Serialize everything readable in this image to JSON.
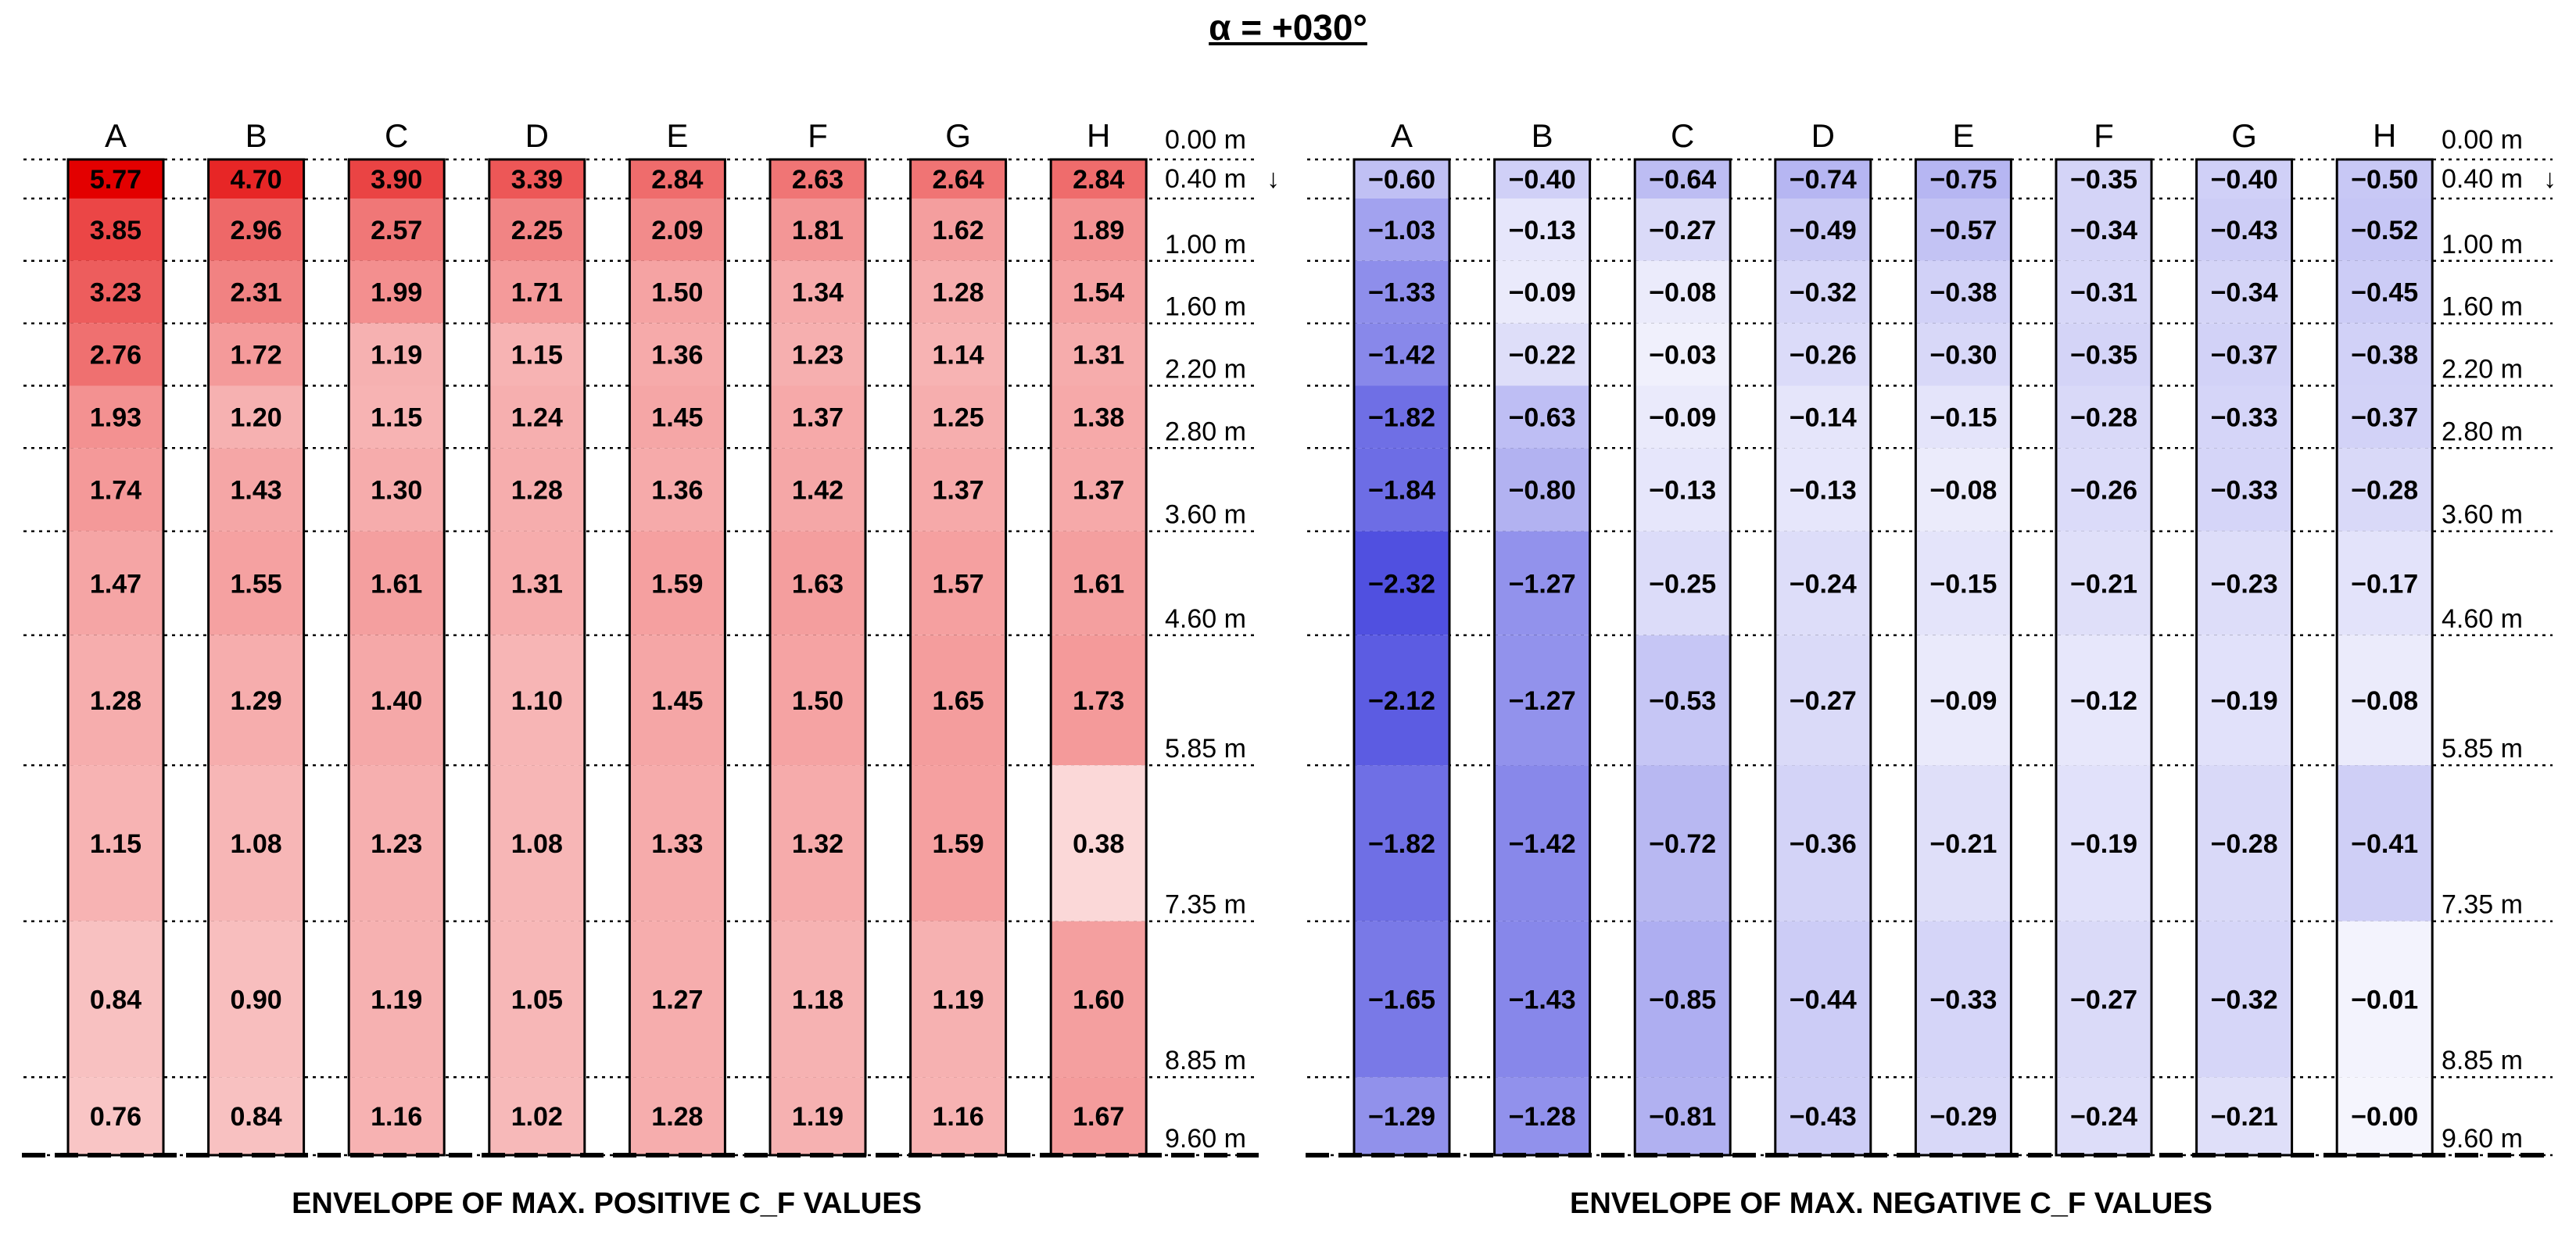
{
  "title": "α = +030°",
  "chart_data": {
    "type": "heatmap",
    "title": "α = +030°",
    "columns": [
      "A",
      "B",
      "C",
      "D",
      "E",
      "F",
      "G",
      "H"
    ],
    "height_labels": [
      "0.00 m",
      "0.40 m",
      "1.00 m",
      "1.60 m",
      "2.20 m",
      "2.80 m",
      "3.60 m",
      "4.60 m",
      "5.85 m",
      "7.35 m",
      "8.85 m",
      "9.60 m"
    ],
    "height_values": [
      0.0,
      0.4,
      1.0,
      1.6,
      2.2,
      2.8,
      3.6,
      4.6,
      5.85,
      7.35,
      8.85,
      9.6
    ],
    "top_marker": "↓",
    "panels": [
      {
        "name": "positive",
        "caption": "ENVELOPE OF MAX. POSITIVE C_F VALUES",
        "color": "#e30000",
        "values": [
          [
            "5.77",
            "4.70",
            "3.90",
            "3.39",
            "2.84",
            "2.63",
            "2.64",
            "2.84"
          ],
          [
            "3.85",
            "2.96",
            "2.57",
            "2.25",
            "2.09",
            "1.81",
            "1.62",
            "1.89"
          ],
          [
            "3.23",
            "2.31",
            "1.99",
            "1.71",
            "1.50",
            "1.34",
            "1.28",
            "1.54"
          ],
          [
            "2.76",
            "1.72",
            "1.19",
            "1.15",
            "1.36",
            "1.23",
            "1.14",
            "1.31"
          ],
          [
            "1.93",
            "1.20",
            "1.15",
            "1.24",
            "1.45",
            "1.37",
            "1.25",
            "1.38"
          ],
          [
            "1.74",
            "1.43",
            "1.30",
            "1.28",
            "1.36",
            "1.42",
            "1.37",
            "1.37"
          ],
          [
            "1.47",
            "1.55",
            "1.61",
            "1.31",
            "1.59",
            "1.63",
            "1.57",
            "1.61"
          ],
          [
            "1.28",
            "1.29",
            "1.40",
            "1.10",
            "1.45",
            "1.50",
            "1.65",
            "1.73"
          ],
          [
            "1.15",
            "1.08",
            "1.23",
            "1.08",
            "1.33",
            "1.32",
            "1.59",
            "0.38"
          ],
          [
            "0.84",
            "0.90",
            "1.19",
            "1.05",
            "1.27",
            "1.18",
            "1.19",
            "1.60"
          ],
          [
            "0.76",
            "0.84",
            "1.16",
            "1.02",
            "1.28",
            "1.19",
            "1.16",
            "1.67"
          ]
        ]
      },
      {
        "name": "negative",
        "caption": "ENVELOPE OF MAX. NEGATIVE C_F VALUES",
        "color": "#5050e0",
        "values": [
          [
            "-0.60",
            "-0.40",
            "-0.64",
            "-0.74",
            "-0.75",
            "-0.35",
            "-0.40",
            "-0.50"
          ],
          [
            "-1.03",
            "-0.13",
            "-0.27",
            "-0.49",
            "-0.57",
            "-0.34",
            "-0.43",
            "-0.52"
          ],
          [
            "-1.33",
            "-0.09",
            "-0.08",
            "-0.32",
            "-0.38",
            "-0.31",
            "-0.34",
            "-0.45"
          ],
          [
            "-1.42",
            "-0.22",
            "-0.03",
            "-0.26",
            "-0.30",
            "-0.35",
            "-0.37",
            "-0.38"
          ],
          [
            "-1.82",
            "-0.63",
            "-0.09",
            "-0.14",
            "-0.15",
            "-0.28",
            "-0.33",
            "-0.37"
          ],
          [
            "-1.84",
            "-0.80",
            "-0.13",
            "-0.13",
            "-0.08",
            "-0.26",
            "-0.33",
            "-0.28"
          ],
          [
            "-2.32",
            "-1.27",
            "-0.25",
            "-0.24",
            "-0.15",
            "-0.21",
            "-0.23",
            "-0.17"
          ],
          [
            "-2.12",
            "-1.27",
            "-0.53",
            "-0.27",
            "-0.09",
            "-0.12",
            "-0.19",
            "-0.08"
          ],
          [
            "-1.82",
            "-1.42",
            "-0.72",
            "-0.36",
            "-0.21",
            "-0.19",
            "-0.28",
            "-0.41"
          ],
          [
            "-1.65",
            "-1.43",
            "-0.85",
            "-0.44",
            "-0.33",
            "-0.27",
            "-0.32",
            "-0.01"
          ],
          [
            "-1.29",
            "-1.28",
            "-0.81",
            "-0.43",
            "-0.29",
            "-0.24",
            "-0.21",
            "-0.00"
          ]
        ]
      }
    ]
  }
}
